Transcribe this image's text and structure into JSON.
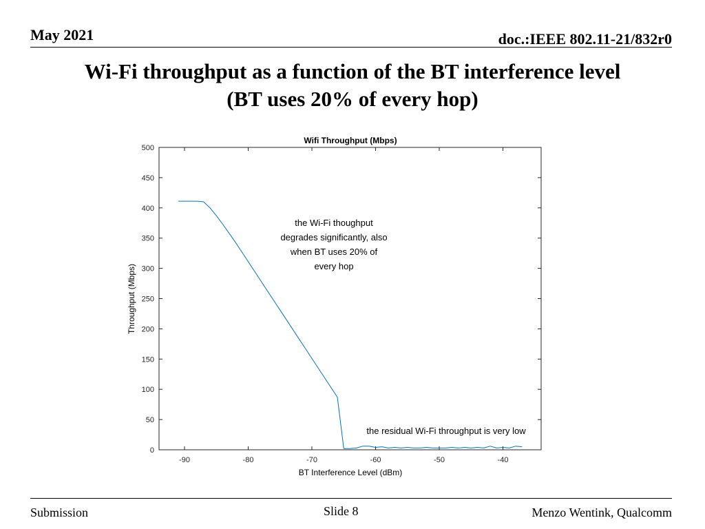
{
  "header": {
    "date": "May 2021",
    "doc_id": "doc.:IEEE 802.11-21/832r0"
  },
  "slide": {
    "title_line1": "Wi-Fi throughput as a function of the BT interference level",
    "title_line2": "(BT uses 20% of every hop)"
  },
  "chart_data": {
    "type": "line",
    "title": "Wifi Throughput (Mbps)",
    "xlabel": "BT Interference Level (dBm)",
    "ylabel": "Throughput (Mbps)",
    "xlim": [
      -94,
      -34
    ],
    "ylim": [
      0,
      500
    ],
    "xticks": [
      -90,
      -80,
      -70,
      -60,
      -50,
      -40
    ],
    "yticks": [
      0,
      50,
      100,
      150,
      200,
      250,
      300,
      350,
      400,
      450,
      500
    ],
    "grid": false,
    "line_color": "#0072BD",
    "series": [
      {
        "x": [
          -91,
          -90,
          -89,
          -88,
          -87,
          -86,
          -85,
          -84,
          -83,
          -82,
          -81,
          -80,
          -79,
          -78,
          -77,
          -76,
          -75,
          -74,
          -73,
          -72,
          -71,
          -70,
          -69,
          -68,
          -67,
          -66,
          -65,
          -64,
          -63,
          -62,
          -61,
          -60,
          -59,
          -58,
          -57,
          -56,
          -55,
          -54,
          -53,
          -52,
          -51,
          -50,
          -49,
          -48,
          -47,
          -46,
          -45,
          -44,
          -43,
          -42,
          -41,
          -40,
          -39,
          -38,
          -37
        ],
        "y": [
          411,
          411,
          411,
          411,
          410,
          400,
          387,
          373,
          358,
          343,
          327,
          311,
          295,
          279,
          263,
          247,
          231,
          215,
          199,
          183,
          167,
          151,
          135,
          119,
          103,
          87,
          2,
          2,
          3,
          6,
          6,
          4,
          5,
          3,
          4,
          3,
          4,
          3,
          3,
          4,
          3,
          3,
          3,
          4,
          3,
          4,
          3,
          4,
          3,
          6,
          3,
          4,
          3,
          6,
          5
        ]
      }
    ],
    "annotations": [
      {
        "lines": [
          "the Wi-Fi thoughput",
          "degrades significantly, also",
          "when BT uses 20% of",
          "every hop"
        ]
      },
      {
        "lines": [
          "the residual Wi-Fi throughput is very low"
        ]
      }
    ]
  },
  "footer": {
    "left": "Submission",
    "center": "Slide 8",
    "right": "Menzo Wentink, Qualcomm"
  }
}
